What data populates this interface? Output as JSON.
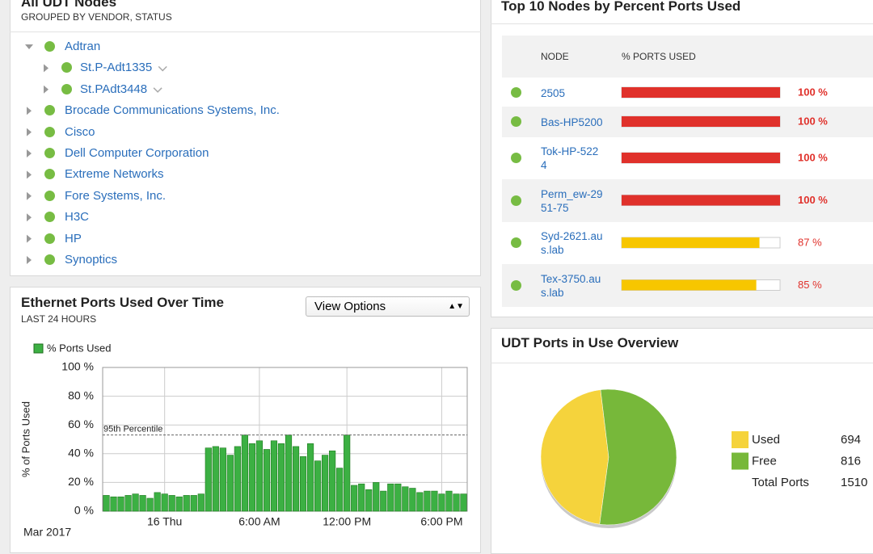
{
  "nodes_panel": {
    "title": "All UDT Nodes",
    "subtitle": "GROUPED BY VENDOR, STATUS",
    "tree": [
      {
        "label": "Adtran",
        "children": [
          "St.P-Adt1335",
          "St.PAdt3448"
        ]
      },
      {
        "label": "Brocade Communications Systems, Inc."
      },
      {
        "label": "Cisco"
      },
      {
        "label": "Dell Computer Corporation"
      },
      {
        "label": "Extreme Networks"
      },
      {
        "label": "Fore Systems, Inc."
      },
      {
        "label": "H3C"
      },
      {
        "label": "HP"
      },
      {
        "label": "Synoptics"
      }
    ]
  },
  "ports_time_panel": {
    "title": "Ethernet Ports Used Over Time",
    "subtitle": "LAST 24 HOURS",
    "view_options": "View Options",
    "chart_data": {
      "type": "bar",
      "legend": "% Ports Used",
      "y_label": "% of Ports Used",
      "x_footer": "Mar 2017",
      "annotation": {
        "label": "95th Percentile",
        "value": 53
      },
      "color": "#3cb043",
      "grid": true,
      "ylim": [
        0,
        100
      ],
      "yticks": [
        {
          "value": 0,
          "label": "0 %"
        },
        {
          "value": 20,
          "label": "20 %"
        },
        {
          "value": 40,
          "label": "40 %"
        },
        {
          "value": 60,
          "label": "60 %"
        },
        {
          "value": 80,
          "label": "80 %"
        },
        {
          "value": 100,
          "label": "100 %"
        }
      ],
      "categories": [
        null,
        null,
        null,
        null,
        null,
        null,
        null,
        null,
        "16 Thu",
        null,
        null,
        null,
        null,
        null,
        null,
        null,
        null,
        null,
        null,
        null,
        null,
        "6:00 AM",
        null,
        null,
        null,
        null,
        null,
        null,
        null,
        null,
        null,
        null,
        null,
        "12:00 PM",
        null,
        null,
        null,
        null,
        null,
        null,
        null,
        null,
        null,
        null,
        null,
        null,
        "6:00 PM",
        null,
        null,
        null
      ],
      "values": [
        11,
        10,
        10,
        11,
        12,
        11,
        9,
        13,
        12,
        11,
        10,
        11,
        11,
        12,
        44,
        45,
        44,
        39,
        45,
        53,
        47,
        49,
        43,
        49,
        47,
        53,
        45,
        38,
        47,
        35,
        39,
        42,
        30,
        53,
        18,
        19,
        15,
        20,
        14,
        19,
        19,
        17,
        16,
        13,
        14,
        14,
        12,
        14,
        12,
        12
      ]
    }
  },
  "top_nodes_panel": {
    "title": "Top 10 Nodes by Percent Ports Used",
    "columns": [
      "NODE",
      "% PORTS USED"
    ],
    "rows": [
      {
        "node": "2505",
        "value": 100,
        "value_label": "100 %",
        "color": "#e0312b"
      },
      {
        "node": "Bas-HP5200",
        "value": 100,
        "value_label": "100 %",
        "color": "#e0312b"
      },
      {
        "node": "Tok-HP-5224",
        "value": 100,
        "value_label": "100 %",
        "color": "#e0312b"
      },
      {
        "node": "Perm_ew-2951-75",
        "value": 100,
        "value_label": "100 %",
        "color": "#e0312b"
      },
      {
        "node": "Syd-2621.aus.lab",
        "value": 87,
        "value_label": "87 %",
        "color": "#f7c600"
      },
      {
        "node": "Tex-3750.aus.lab",
        "value": 85,
        "value_label": "85 %",
        "color": "#f7c600"
      }
    ]
  },
  "overview_panel": {
    "title": "UDT Ports in Use Overview",
    "chart_data": {
      "type": "pie",
      "categories": [
        "Used",
        "Free"
      ],
      "values": [
        694,
        816
      ],
      "colors": [
        "#f5d33c",
        "#77b83a"
      ],
      "total_label": "Total Ports",
      "total": 1510
    }
  }
}
